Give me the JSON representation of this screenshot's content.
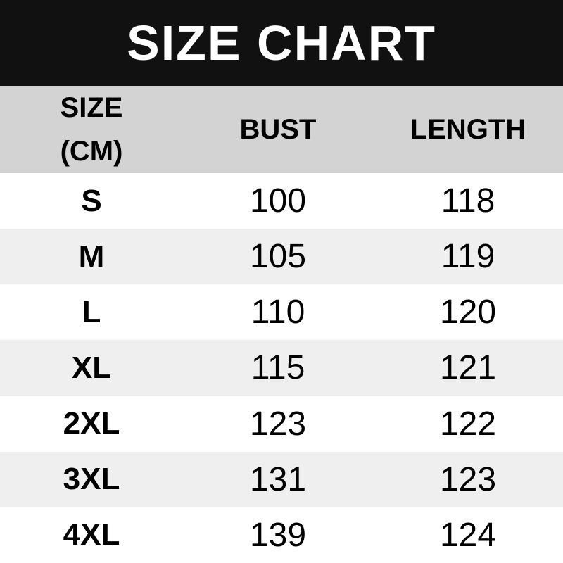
{
  "title": "SIZE CHART",
  "header": {
    "size_line1": "SIZE",
    "size_line2": "(CM)",
    "bust": "BUST",
    "length": "LENGTH"
  },
  "chart_data": {
    "type": "table",
    "title": "SIZE CHART",
    "unit": "CM",
    "columns": [
      "SIZE (CM)",
      "BUST",
      "LENGTH"
    ],
    "rows": [
      [
        "S",
        "100",
        "118"
      ],
      [
        "M",
        "105",
        "119"
      ],
      [
        "L",
        "110",
        "120"
      ],
      [
        "XL",
        "115",
        "121"
      ],
      [
        "2XL",
        "123",
        "122"
      ],
      [
        "3XL",
        "131",
        "123"
      ],
      [
        "4XL",
        "139",
        "124"
      ]
    ]
  },
  "theme": {
    "title_bg": "#111111",
    "title_text": "#ffffff",
    "header_bg": "#d3d3d3",
    "stripe_bg": "#efefef",
    "row_bg": "#ffffff",
    "text": "#000000"
  }
}
